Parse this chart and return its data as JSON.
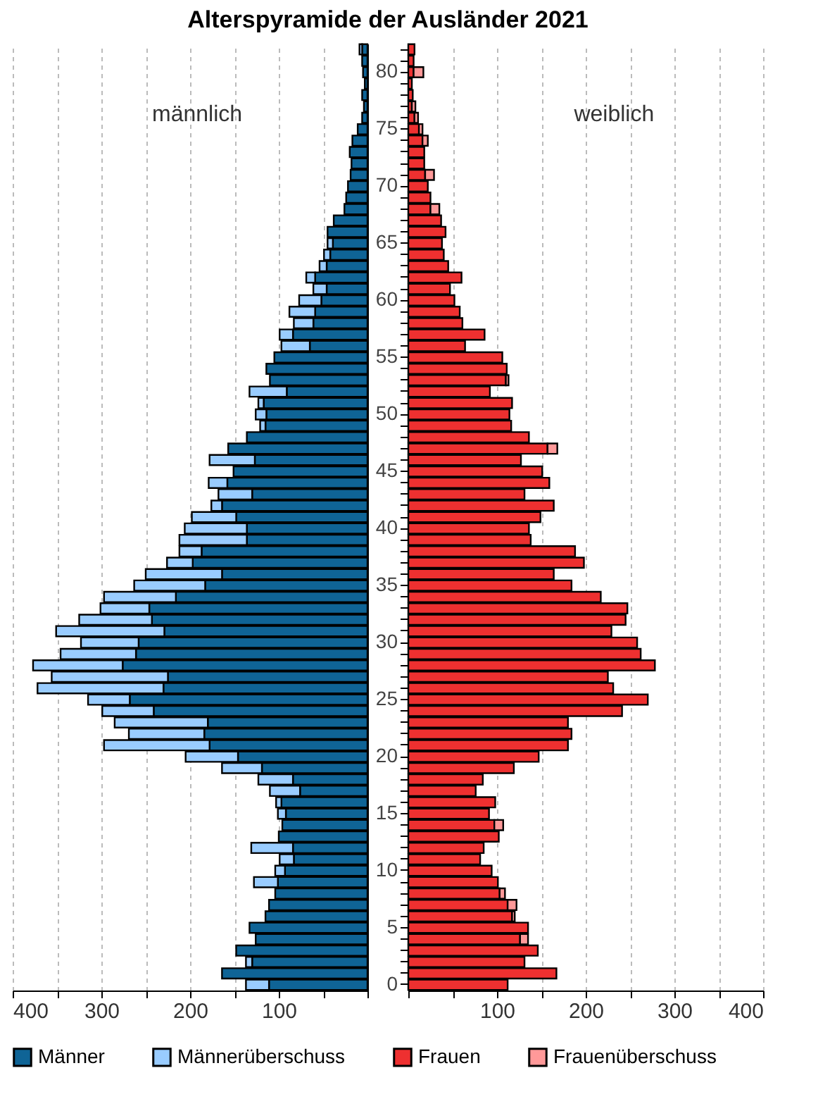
{
  "chart_data": [
    {
      "type": "bar",
      "title": "Alterspyramide der Ausländer 2021",
      "orientation": "horizontal",
      "stacked": true,
      "legend": "bottom",
      "grid": "x",
      "tick_labels": "x",
      "annotations": [
        "männlich"
      ],
      "categories": [
        null,
        null,
        "80",
        null,
        null,
        null,
        null,
        "75",
        null,
        null,
        null,
        null,
        "70",
        null,
        null,
        null,
        null,
        "65",
        null,
        null,
        null,
        null,
        "60",
        null,
        null,
        null,
        null,
        "55",
        null,
        null,
        null,
        null,
        "50",
        null,
        null,
        null,
        null,
        "45",
        null,
        null,
        null,
        null,
        "40",
        null,
        null,
        null,
        null,
        "35",
        null,
        null,
        null,
        null,
        "30",
        null,
        null,
        null,
        null,
        "25",
        null,
        null,
        null,
        null,
        "20",
        null,
        null,
        null,
        null,
        "15",
        null,
        null,
        null,
        null,
        "10",
        null,
        null,
        null,
        null,
        "5",
        null,
        null,
        null,
        null,
        "0"
      ],
      "xlim": [
        400,
        0
      ],
      "xticks": [
        {
          "value": 0,
          "label": null
        },
        {
          "value": 50,
          "label": null
        },
        100,
        {
          "value": 150,
          "label": null
        },
        200,
        {
          "value": 250,
          "label": null
        },
        300,
        {
          "value": 350,
          "label": null
        },
        400
      ],
      "series": [
        {
          "name": "Männer",
          "color": "#0f6496",
          "values": [
            6,
            6,
            5,
            3,
            6,
            4,
            6,
            11,
            17,
            20,
            18,
            19,
            22,
            24,
            26,
            38,
            45,
            39,
            42,
            46,
            59,
            46,
            52,
            59,
            61,
            84,
            65,
            105,
            114,
            110,
            91,
            117,
            114,
            115,
            136,
            157,
            127,
            151,
            158,
            130,
            164,
            148,
            136,
            136,
            187,
            197,
            164,
            183,
            216,
            246,
            243,
            229,
            258,
            261,
            276,
            225,
            230,
            268,
            241,
            180,
            184,
            178,
            146,
            119,
            84,
            76,
            97,
            92,
            96,
            100,
            84,
            83,
            93,
            101,
            104,
            111,
            115,
            133,
            126,
            148,
            130,
            164,
            111
          ]
        },
        {
          "name": "Männerüberschuss",
          "color": "#99ccff",
          "values": [
            3,
            null,
            null,
            null,
            null,
            null,
            null,
            null,
            null,
            null,
            null,
            null,
            null,
            null,
            null,
            null,
            null,
            6,
            7,
            8,
            10,
            15,
            25,
            29,
            22,
            15,
            32,
            null,
            null,
            null,
            42,
            6,
            12,
            6,
            null,
            null,
            51,
            null,
            21,
            38,
            12,
            50,
            70,
            76,
            25,
            29,
            86,
            80,
            81,
            55,
            82,
            122,
            65,
            85,
            101,
            131,
            142,
            47,
            58,
            105,
            85,
            119,
            59,
            45,
            39,
            34,
            6,
            9,
            null,
            null,
            47,
            16,
            11,
            27,
            null,
            null,
            null,
            null,
            null,
            null,
            7,
            null,
            26
          ]
        }
      ]
    },
    {
      "type": "bar",
      "orientation": "horizontal",
      "stacked": true,
      "legend": "bottom",
      "grid": "x",
      "annotations": [
        "weiblich"
      ],
      "categories": [
        null,
        null,
        "80",
        null,
        null,
        null,
        null,
        "75",
        null,
        null,
        null,
        null,
        "70",
        null,
        null,
        null,
        null,
        "65",
        null,
        null,
        null,
        null,
        "60",
        null,
        null,
        null,
        null,
        "55",
        null,
        null,
        null,
        null,
        "50",
        null,
        null,
        null,
        null,
        "45",
        null,
        null,
        null,
        null,
        "40",
        null,
        null,
        null,
        null,
        "35",
        null,
        null,
        null,
        null,
        "30",
        null,
        null,
        null,
        null,
        "25",
        null,
        null,
        null,
        null,
        "20",
        null,
        null,
        null,
        null,
        "15",
        null,
        null,
        null,
        null,
        "10",
        null,
        null,
        null,
        null,
        "5",
        null,
        null,
        null,
        null,
        "0"
      ],
      "xlim": [
        0,
        400
      ],
      "xticks": [
        {
          "value": 0,
          "label": null
        },
        {
          "value": 50,
          "label": null
        },
        100,
        {
          "value": 150,
          "label": null
        },
        200,
        {
          "value": 250,
          "label": null
        },
        300,
        {
          "value": 350,
          "label": null
        },
        400
      ],
      "series": [
        {
          "name": "Frauen",
          "color": "#ee3030",
          "values": [
            7,
            6,
            6,
            4,
            5,
            4,
            7,
            12,
            16,
            18,
            18,
            19,
            22,
            25,
            25,
            37,
            42,
            38,
            40,
            45,
            60,
            47,
            52,
            58,
            61,
            86,
            64,
            106,
            111,
            110,
            92,
            117,
            114,
            116,
            136,
            157,
            127,
            151,
            159,
            131,
            164,
            149,
            136,
            138,
            188,
            198,
            164,
            184,
            217,
            247,
            245,
            229,
            258,
            262,
            278,
            225,
            231,
            270,
            241,
            180,
            184,
            180,
            147,
            119,
            84,
            76,
            98,
            91,
            97,
            102,
            85,
            81,
            94,
            101,
            103,
            112,
            117,
            135,
            126,
            146,
            131,
            167,
            112
          ]
        },
        {
          "name": "Frauenüberschuss",
          "color": "#ff9999",
          "values": [
            null,
            null,
            11,
            null,
            null,
            4,
            4,
            4,
            6,
            null,
            null,
            10,
            null,
            null,
            10,
            null,
            null,
            null,
            null,
            null,
            null,
            null,
            null,
            null,
            null,
            null,
            null,
            null,
            null,
            3,
            null,
            null,
            null,
            null,
            null,
            11,
            null,
            null,
            null,
            null,
            null,
            null,
            null,
            null,
            null,
            null,
            null,
            null,
            null,
            null,
            null,
            null,
            null,
            null,
            null,
            null,
            null,
            null,
            null,
            null,
            null,
            null,
            null,
            null,
            null,
            null,
            null,
            null,
            10,
            null,
            null,
            null,
            null,
            null,
            6,
            10,
            3,
            null,
            9,
            null,
            null,
            null,
            null
          ]
        }
      ]
    }
  ]
}
